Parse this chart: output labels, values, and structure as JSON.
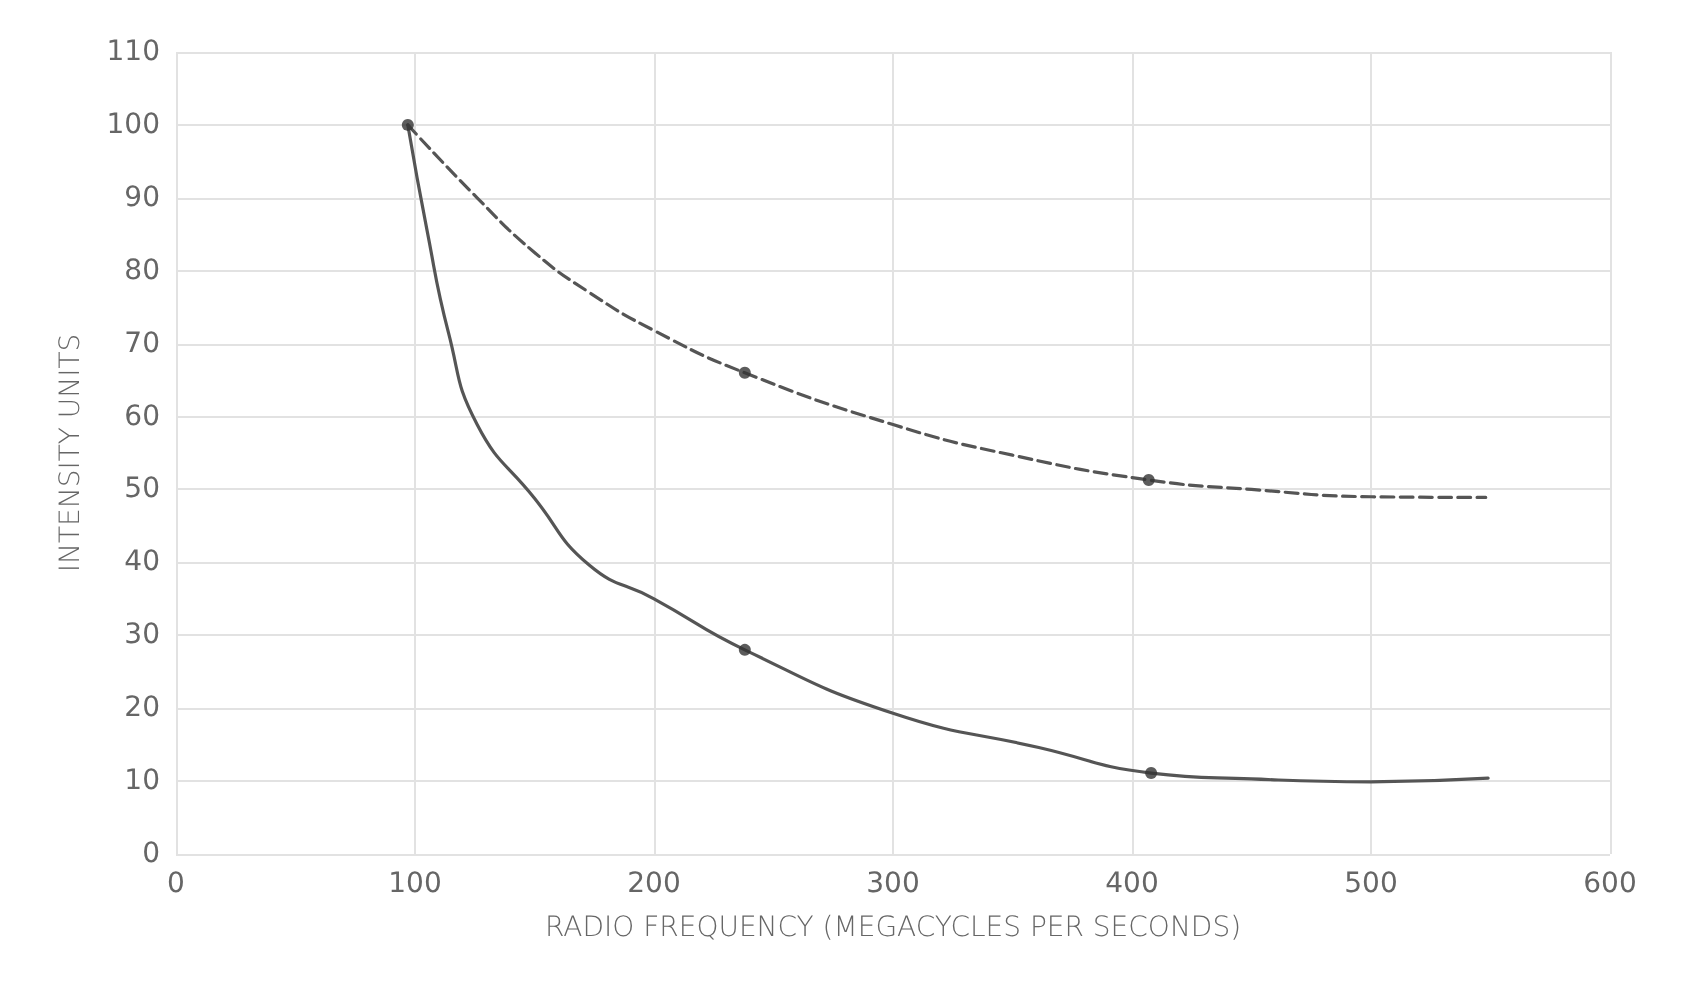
{
  "chart_data": {
    "type": "line",
    "xlabel": "RADIO FREQUENCY (MEGACYCLES PER SECONDS)",
    "ylabel": "INTENSITY UNITS",
    "xlim": [
      0,
      600
    ],
    "xticks": [
      0,
      100,
      200,
      300,
      400,
      500,
      600
    ],
    "ylim": [
      0,
      110
    ],
    "yticks": [
      0,
      10,
      20,
      30,
      40,
      50,
      60,
      70,
      80,
      90,
      100,
      110
    ],
    "grid": true,
    "marker": "none",
    "series": [
      {
        "color": "#555555",
        "line_style": "dashed",
        "x": [
          97,
          126,
          150,
          173,
          200,
          238,
          300,
          350,
          407,
          450,
          500,
          548
        ],
        "values": [
          100,
          90,
          82.5,
          77,
          71.8,
          66,
          58.9,
          54.7,
          51.3,
          50,
          49,
          48.9
        ]
      },
      {
        "color": "#555555",
        "line_style": "solid",
        "x": [
          97,
          105,
          114,
          126,
          150,
          173,
          200,
          238,
          300,
          361,
          408,
          450,
          500,
          549
        ],
        "values": [
          100,
          85.6,
          71.5,
          58.9,
          48.8,
          39.6,
          35,
          28,
          19.3,
          14.6,
          11.1,
          10.3,
          9.9,
          10.4
        ]
      },
      {
        "type": "scatter",
        "color": "#333333",
        "marker": "circle",
        "x": [
          97,
          238,
          407
        ],
        "values": [
          100,
          66,
          51.3
        ]
      },
      {
        "type": "scatter",
        "color": "#333333",
        "marker": "circle",
        "x": [
          238,
          408
        ],
        "values": [
          28,
          11.1
        ]
      }
    ]
  }
}
